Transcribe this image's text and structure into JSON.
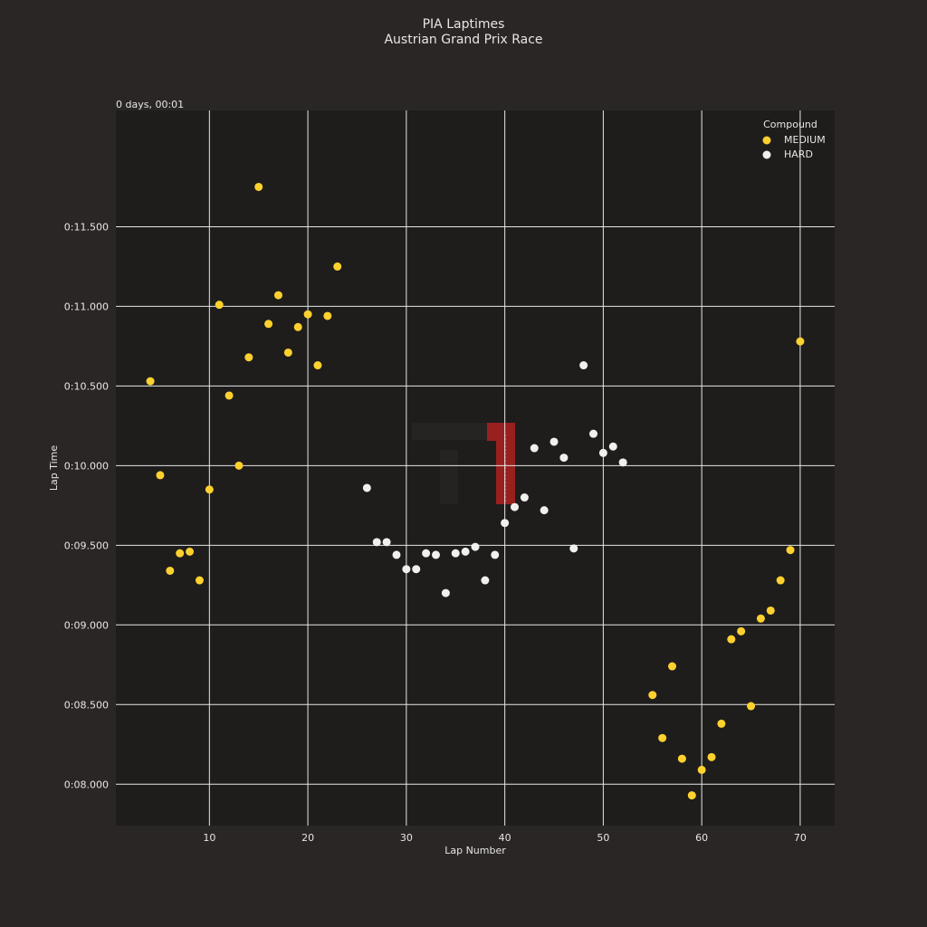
{
  "colors": {
    "page_background": "#292625",
    "plot_background": "#1e1d1c",
    "medium": "#ffd12e",
    "hard": "#f0f0ec",
    "text": "#e8e6e3",
    "grid": "#e6e6e6",
    "watermark_red": "#c1201f"
  },
  "chart_data": {
    "type": "scatter",
    "title": "PIA Laptimes",
    "subtitle": "Austrian Grand Prix Race",
    "xlabel": "Lap Number",
    "ylabel": "Lap Time",
    "offset_label": "0 days, 00:01",
    "xlim": [
      0.5,
      73.5
    ],
    "ylim": [
      77.4,
      122.3
    ],
    "xticks": [
      10,
      20,
      30,
      40,
      50,
      60,
      70
    ],
    "yticks": [
      80,
      85,
      90,
      95,
      100,
      105,
      110,
      115
    ],
    "ytick_labels": [
      "0:08.000",
      "0:08.500",
      "0:09.000",
      "0:09.500",
      "0:10.000",
      "0:10.500",
      "0:11.000",
      "0:11.500"
    ],
    "grid": true,
    "legend": {
      "title": "Compound",
      "placement": "top-right"
    },
    "series": [
      {
        "name": "MEDIUM",
        "color": "#ffd12e",
        "points": [
          [
            4,
            105.3
          ],
          [
            5,
            99.4
          ],
          [
            6,
            93.4
          ],
          [
            7,
            94.5
          ],
          [
            8,
            94.6
          ],
          [
            9,
            92.8
          ],
          [
            10,
            98.5
          ],
          [
            11,
            110.1
          ],
          [
            12,
            104.4
          ],
          [
            13,
            100.0
          ],
          [
            14,
            106.8
          ],
          [
            15,
            117.5
          ],
          [
            16,
            108.9
          ],
          [
            17,
            110.7
          ],
          [
            18,
            107.1
          ],
          [
            19,
            108.7
          ],
          [
            20,
            109.5
          ],
          [
            21,
            106.3
          ],
          [
            22,
            109.4
          ],
          [
            23,
            112.5
          ],
          [
            55,
            85.6
          ],
          [
            56,
            82.9
          ],
          [
            57,
            87.4
          ],
          [
            58,
            81.6
          ],
          [
            59,
            79.3
          ],
          [
            60,
            80.9
          ],
          [
            61,
            81.7
          ],
          [
            62,
            83.8
          ],
          [
            63,
            89.1
          ],
          [
            64,
            89.6
          ],
          [
            65,
            84.9
          ],
          [
            66,
            90.4
          ],
          [
            67,
            90.9
          ],
          [
            68,
            92.8
          ],
          [
            69,
            94.7
          ],
          [
            70,
            107.8
          ]
        ]
      },
      {
        "name": "HARD",
        "color": "#f0f0ec",
        "points": [
          [
            26,
            98.6
          ],
          [
            27,
            95.2
          ],
          [
            28,
            95.2
          ],
          [
            29,
            94.4
          ],
          [
            30,
            93.5
          ],
          [
            31,
            93.5
          ],
          [
            32,
            94.5
          ],
          [
            33,
            94.4
          ],
          [
            34,
            92.0
          ],
          [
            35,
            94.5
          ],
          [
            36,
            94.6
          ],
          [
            37,
            94.9
          ],
          [
            38,
            92.8
          ],
          [
            39,
            94.4
          ],
          [
            40,
            96.4
          ],
          [
            41,
            97.4
          ],
          [
            42,
            98.0
          ],
          [
            43,
            101.1
          ],
          [
            44,
            97.2
          ],
          [
            45,
            101.5
          ],
          [
            46,
            100.5
          ],
          [
            47,
            94.8
          ],
          [
            48,
            106.3
          ],
          [
            49,
            102.0
          ],
          [
            50,
            100.8
          ],
          [
            51,
            101.2
          ],
          [
            52,
            100.2
          ]
        ]
      }
    ]
  }
}
